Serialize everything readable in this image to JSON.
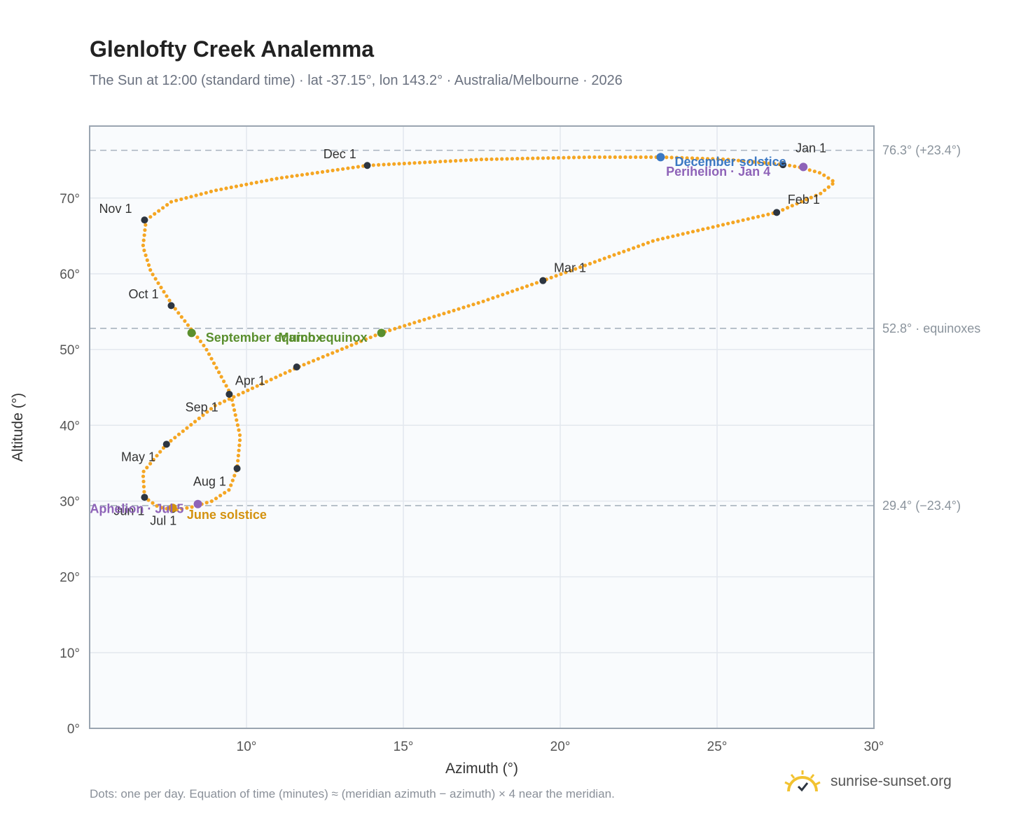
{
  "header": {
    "title": "Glenlofty Creek Analemma",
    "subtitle": "The Sun at 12:00 (standard time) · lat -37.15°, lon 143.2° · Australia/Melbourne · 2026"
  },
  "footer": {
    "note": "Dots: one per day. Equation of time (minutes) ≈ (meridian azimuth − azimuth) × 4 near the meridian.",
    "brand": "sunrise-sunset.org",
    "brand_icon": "sun-logo-icon"
  },
  "colors": {
    "curve": "#f5a623",
    "month_marker": "#2d3540",
    "equinox": "#5a8f2e",
    "december_solstice": "#3b78c3",
    "june_solstice": "#d4920f",
    "apsis": "#8e63b8",
    "reference_line": "#a9b4bf",
    "plot_bg": "#f9fbfd",
    "grid": "#e3e8ee"
  },
  "chart_data": {
    "type": "scatter",
    "title": "Glenlofty Creek Analemma",
    "xlabel": "Azimuth (°)",
    "ylabel": "Altitude (°)",
    "xlim": [
      5,
      30
    ],
    "ylim": [
      0,
      79.5
    ],
    "x_ticks": [
      {
        "value": 10,
        "label": "10°"
      },
      {
        "value": 15,
        "label": "15°"
      },
      {
        "value": 20,
        "label": "20°"
      },
      {
        "value": 25,
        "label": "25°"
      },
      {
        "value": 30,
        "label": "30°"
      }
    ],
    "y_ticks": [
      {
        "value": 0,
        "label": "0°"
      },
      {
        "value": 10,
        "label": "10°"
      },
      {
        "value": 20,
        "label": "20°"
      },
      {
        "value": 30,
        "label": "30°"
      },
      {
        "value": 40,
        "label": "40°"
      },
      {
        "value": 50,
        "label": "50°"
      },
      {
        "value": 60,
        "label": "60°"
      },
      {
        "value": 70,
        "label": "70°"
      }
    ],
    "grid": true,
    "reference_lines": [
      {
        "y": 76.3,
        "label": "76.3° (+23.4°)"
      },
      {
        "y": 52.8,
        "label": "52.8° · equinoxes"
      },
      {
        "y": 29.4,
        "label": "29.4° (−23.4°)"
      }
    ],
    "path": [
      {
        "x": 27.15,
        "y": 74.4
      },
      {
        "x": 27.6,
        "y": 74.1
      },
      {
        "x": 28.3,
        "y": 73.3
      },
      {
        "x": 28.75,
        "y": 72.1
      },
      {
        "x": 28.3,
        "y": 70.6
      },
      {
        "x": 26.9,
        "y": 68.1
      },
      {
        "x": 23.0,
        "y": 64.4
      },
      {
        "x": 19.45,
        "y": 59.1
      },
      {
        "x": 17.5,
        "y": 56.3
      },
      {
        "x": 14.3,
        "y": 52.2
      },
      {
        "x": 11.65,
        "y": 47.7
      },
      {
        "x": 10.5,
        "y": 45.5
      },
      {
        "x": 9.0,
        "y": 42.6
      },
      {
        "x": 7.45,
        "y": 37.5
      },
      {
        "x": 6.7,
        "y": 33.8
      },
      {
        "x": 6.75,
        "y": 30.5
      },
      {
        "x": 7.2,
        "y": 29.2
      },
      {
        "x": 7.7,
        "y": 28.8
      },
      {
        "x": 8.25,
        "y": 29.2
      },
      {
        "x": 8.9,
        "y": 30.0
      },
      {
        "x": 9.45,
        "y": 31.5
      },
      {
        "x": 9.7,
        "y": 34.3
      },
      {
        "x": 9.8,
        "y": 38.5
      },
      {
        "x": 9.5,
        "y": 44.1
      },
      {
        "x": 8.7,
        "y": 50.2
      },
      {
        "x": 7.65,
        "y": 55.8
      },
      {
        "x": 6.95,
        "y": 60.3
      },
      {
        "x": 6.7,
        "y": 63.6
      },
      {
        "x": 6.8,
        "y": 67.1
      },
      {
        "x": 7.6,
        "y": 69.5
      },
      {
        "x": 9.0,
        "y": 71.0
      },
      {
        "x": 11.0,
        "y": 72.6
      },
      {
        "x": 13.85,
        "y": 74.3
      },
      {
        "x": 17.5,
        "y": 75.1
      },
      {
        "x": 21.0,
        "y": 75.4
      },
      {
        "x": 23.2,
        "y": 75.4
      },
      {
        "x": 25.3,
        "y": 75.1
      },
      {
        "x": 27.15,
        "y": 74.4
      }
    ],
    "month_markers": [
      {
        "label": "Jan 1",
        "x": 27.1,
        "y": 74.4,
        "anchor": "start",
        "dx": 0.4,
        "dy": 2.2
      },
      {
        "label": "Feb 1",
        "x": 26.9,
        "y": 68.1,
        "anchor": "start",
        "dx": 0.35,
        "dy": 1.7
      },
      {
        "label": "Mar 1",
        "x": 19.45,
        "y": 59.1,
        "anchor": "start",
        "dx": 0.35,
        "dy": 1.7
      },
      {
        "label": "Apr 1",
        "x": 11.6,
        "y": 47.7,
        "anchor": "end",
        "dx": -1.0,
        "dy": -1.8
      },
      {
        "label": "May 1",
        "x": 7.45,
        "y": 37.5,
        "anchor": "end",
        "dx": -0.35,
        "dy": -1.7
      },
      {
        "label": "Jun 1",
        "x": 6.75,
        "y": 30.5,
        "anchor": "end",
        "dx": 0.0,
        "dy": -1.8
      },
      {
        "label": "Jul 1",
        "x": 7.65,
        "y": 28.9,
        "anchor": "middle",
        "dx": -0.3,
        "dy": -1.5
      },
      {
        "label": "Aug 1",
        "x": 9.7,
        "y": 34.3,
        "anchor": "end",
        "dx": -0.35,
        "dy": -1.7
      },
      {
        "label": "Sep 1",
        "x": 9.45,
        "y": 44.1,
        "anchor": "end",
        "dx": -0.35,
        "dy": -1.7
      },
      {
        "label": "Oct 1",
        "x": 7.6,
        "y": 55.8,
        "anchor": "end",
        "dx": -0.4,
        "dy": 1.5
      },
      {
        "label": "Nov 1",
        "x": 6.75,
        "y": 67.1,
        "anchor": "end",
        "dx": -0.4,
        "dy": 1.5
      },
      {
        "label": "Dec 1",
        "x": 13.85,
        "y": 74.3,
        "anchor": "end",
        "dx": -0.35,
        "dy": 1.5
      }
    ],
    "events": [
      {
        "label": "December solstice",
        "x": 23.2,
        "y": 75.4,
        "color": "#3b78c3",
        "anchor": "start",
        "dx": 0.45,
        "dy": -0.6
      },
      {
        "label": "Perihelion · Jan 4",
        "x": 27.75,
        "y": 74.1,
        "color": "#8e63b8",
        "anchor": "end",
        "dx": -1.05,
        "dy": -0.6
      },
      {
        "label": "March equinox",
        "x": 14.3,
        "y": 52.2,
        "color": "#5a8f2e",
        "anchor": "end",
        "dx": -0.45,
        "dy": -0.6
      },
      {
        "label": "September equinox",
        "x": 8.25,
        "y": 52.2,
        "color": "#5a8f2e",
        "anchor": "start",
        "dx": 0.45,
        "dy": -0.6
      },
      {
        "label": "June solstice",
        "x": 7.65,
        "y": 29.1,
        "color": "#d4920f",
        "anchor": "start",
        "dx": 0.45,
        "dy": -0.9
      },
      {
        "label": "Aphelion · Jul 5",
        "x": 8.45,
        "y": 29.6,
        "color": "#8e63b8",
        "anchor": "end",
        "dx": -0.45,
        "dy": -0.6
      }
    ]
  }
}
